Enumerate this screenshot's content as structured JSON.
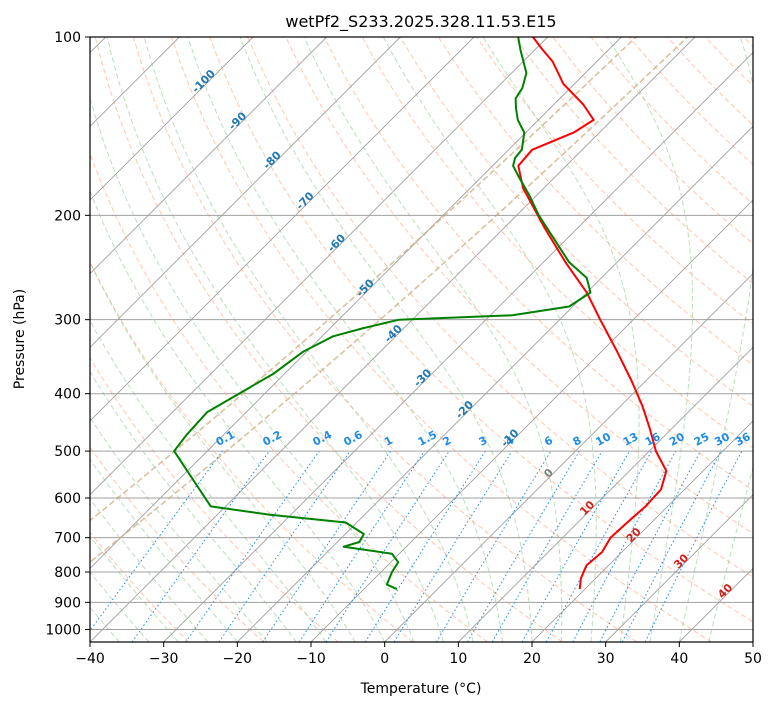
{
  "chart_data": {
    "type": "line",
    "chart_kind": "skew-T log-P diagram",
    "title": "wetPf2_S233.2025.328.11.53.E15",
    "xlabel": "Temperature (°C)",
    "ylabel": "Pressure (hPa)",
    "xlim": [
      -40,
      50
    ],
    "ylim": [
      1050,
      100
    ],
    "y_scale": "log",
    "grid": true,
    "x_ticks": [
      "−40",
      "−30",
      "−20",
      "−10",
      "0",
      "10",
      "20",
      "30",
      "40",
      "50"
    ],
    "y_ticks": [
      {
        "p": 100,
        "label": "100"
      },
      {
        "p": 200,
        "label": "200"
      },
      {
        "p": 300,
        "label": "300"
      },
      {
        "p": 400,
        "label": "400"
      },
      {
        "p": 500,
        "label": "500"
      },
      {
        "p": 600,
        "label": "600"
      },
      {
        "p": 700,
        "label": "700"
      },
      {
        "p": 800,
        "label": "800"
      },
      {
        "p": 900,
        "label": "900"
      },
      {
        "p": 1000,
        "label": "1000"
      }
    ],
    "series": [
      {
        "role": "temperature",
        "color": "#ff0000",
        "points": [
          {
            "p": 855,
            "t": 19.3
          },
          {
            "p": 820,
            "t": 18.0
          },
          {
            "p": 780,
            "t": 17.0
          },
          {
            "p": 740,
            "t": 17.3
          },
          {
            "p": 700,
            "t": 16.5
          },
          {
            "p": 660,
            "t": 16.7
          },
          {
            "p": 620,
            "t": 17.0
          },
          {
            "p": 580,
            "t": 16.8
          },
          {
            "p": 540,
            "t": 15.0
          },
          {
            "p": 500,
            "t": 10.9
          },
          {
            "p": 460,
            "t": 7.2
          },
          {
            "p": 420,
            "t": 3.0
          },
          {
            "p": 380,
            "t": -2.0
          },
          {
            "p": 340,
            "t": -7.8
          },
          {
            "p": 300,
            "t": -14.5
          },
          {
            "p": 270,
            "t": -20.0
          },
          {
            "p": 240,
            "t": -27.0
          },
          {
            "p": 210,
            "t": -34.5
          },
          {
            "p": 180,
            "t": -42.8
          },
          {
            "p": 165,
            "t": -46.5
          },
          {
            "p": 155,
            "t": -46.8
          },
          {
            "p": 145,
            "t": -43.5
          },
          {
            "p": 138,
            "t": -42.5
          },
          {
            "p": 130,
            "t": -46.0
          },
          {
            "p": 120,
            "t": -51.5
          },
          {
            "p": 110,
            "t": -56.0
          },
          {
            "p": 105,
            "t": -59.0
          },
          {
            "p": 100,
            "t": -62.0
          }
        ]
      },
      {
        "role": "dewpoint",
        "color": "#008000",
        "points": [
          {
            "p": 855,
            "t": -5.5
          },
          {
            "p": 840,
            "t": -7.5
          },
          {
            "p": 800,
            "t": -8.5
          },
          {
            "p": 770,
            "t": -9.0
          },
          {
            "p": 745,
            "t": -11.0
          },
          {
            "p": 725,
            "t": -18.5
          },
          {
            "p": 712,
            "t": -17.0
          },
          {
            "p": 690,
            "t": -17.5
          },
          {
            "p": 660,
            "t": -21.5
          },
          {
            "p": 640,
            "t": -33.0
          },
          {
            "p": 620,
            "t": -42.0
          },
          {
            "p": 500,
            "t": -54.5
          },
          {
            "p": 470,
            "t": -55.0
          },
          {
            "p": 430,
            "t": -55.3
          },
          {
            "p": 400,
            "t": -53.5
          },
          {
            "p": 370,
            "t": -51.5
          },
          {
            "p": 340,
            "t": -50.5
          },
          {
            "p": 320,
            "t": -48.5
          },
          {
            "p": 310,
            "t": -45.5
          },
          {
            "p": 300,
            "t": -41.8
          },
          {
            "p": 295,
            "t": -27.0
          },
          {
            "p": 285,
            "t": -20.5
          },
          {
            "p": 270,
            "t": -19.5
          },
          {
            "p": 255,
            "t": -22.0
          },
          {
            "p": 240,
            "t": -26.5
          },
          {
            "p": 220,
            "t": -31.5
          },
          {
            "p": 200,
            "t": -37.0
          },
          {
            "p": 185,
            "t": -41.0
          },
          {
            "p": 172,
            "t": -45.0
          },
          {
            "p": 165,
            "t": -47.2
          },
          {
            "p": 160,
            "t": -48.0
          },
          {
            "p": 155,
            "t": -48.2
          },
          {
            "p": 145,
            "t": -50.2
          },
          {
            "p": 138,
            "t": -52.8
          },
          {
            "p": 132,
            "t": -54.6
          },
          {
            "p": 127,
            "t": -56.0
          },
          {
            "p": 122,
            "t": -56.5
          },
          {
            "p": 115,
            "t": -58.0
          },
          {
            "p": 105,
            "t": -62.0
          },
          {
            "p": 100,
            "t": -64.0
          }
        ]
      }
    ],
    "background_lines": {
      "isotherms": {
        "color": "#a0a0a0",
        "step": 10
      },
      "isobars": {
        "color": "#a0a0a0"
      },
      "dry_adiabats": {
        "color": "#ffa07a",
        "style": "dashed"
      },
      "moist_adiabats": {
        "color": "#90c890",
        "style": "dashed"
      },
      "mixing_ratio": {
        "color": "#1e8ce6",
        "style": "dotted"
      },
      "special_isotherms": {
        "color": "#c8a878",
        "style": "dashed"
      }
    },
    "mixing_ratio_labels": [
      "0.1",
      "0.2",
      "0.4",
      "0.6",
      "1",
      "1.5",
      "2",
      "3",
      "4",
      "6",
      "8",
      "10",
      "13",
      "16",
      "20",
      "25",
      "30",
      "36"
    ],
    "isotherm_labels_blue": [
      {
        "label": "-100",
        "t": -100,
        "p": 120
      },
      {
        "label": "-90",
        "t": -90,
        "p": 140
      },
      {
        "label": "-80",
        "t": -80,
        "p": 163
      },
      {
        "label": "-70",
        "t": -70,
        "p": 191
      },
      {
        "label": "-60",
        "t": -60,
        "p": 225
      },
      {
        "label": "-50",
        "t": -50,
        "p": 268
      },
      {
        "label": "-40",
        "t": -40,
        "p": 320
      },
      {
        "label": "-30",
        "t": -30,
        "p": 380
      },
      {
        "label": "-20",
        "t": -20,
        "p": 430
      },
      {
        "label": "-10",
        "t": -10,
        "p": 480
      }
    ],
    "isotherm_labels_other": [
      {
        "label": "0",
        "t": 0,
        "p": 550,
        "color": "#808080"
      },
      {
        "label": "10",
        "t": 10,
        "p": 630,
        "color": "#d62020"
      },
      {
        "label": "20",
        "t": 20,
        "p": 700,
        "color": "#d62020"
      },
      {
        "label": "30",
        "t": 30,
        "p": 775,
        "color": "#d62020"
      },
      {
        "label": "40",
        "t": 40,
        "p": 870,
        "color": "#d62020"
      }
    ]
  }
}
